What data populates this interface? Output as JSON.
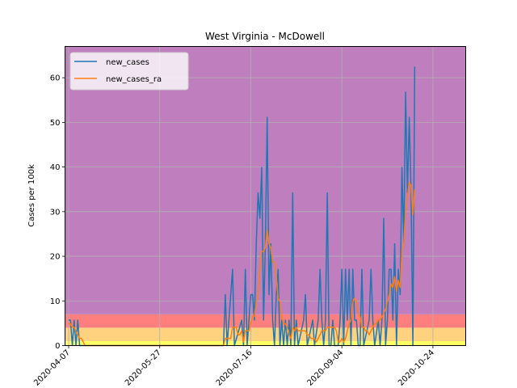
{
  "chart_data": {
    "type": "line",
    "title": "West Virginia - McDowell",
    "xlabel": "",
    "ylabel": "Cases per 100k",
    "x_start": "2020-04-05",
    "x_end": "2020-11-11",
    "xlim": [
      "2020-04-05",
      "2020-11-11"
    ],
    "ylim": [
      0,
      67
    ],
    "x_ticks": [
      "2020-04-07",
      "2020-05-27",
      "2020-07-16",
      "2020-09-04",
      "2020-10-24"
    ],
    "y_ticks": [
      0,
      10,
      20,
      30,
      40,
      50,
      60
    ],
    "grid": true,
    "legend": "top-left",
    "risk_bands": [
      {
        "from": 0,
        "to": 1,
        "color": "#ffff66"
      },
      {
        "from": 1,
        "to": 4,
        "color": "#ffd27f"
      },
      {
        "from": 4,
        "to": 7,
        "color": "#ff7f7f"
      },
      {
        "from": 7,
        "to": 67,
        "color": "#bf7fbf"
      }
    ],
    "series": [
      {
        "name": "new_cases",
        "color": "#1f77b4",
        "points": [
          [
            "2020-04-07",
            5.7
          ],
          [
            "2020-04-08",
            5.7
          ],
          [
            "2020-04-09",
            0
          ],
          [
            "2020-04-10",
            5.7
          ],
          [
            "2020-04-11",
            0
          ],
          [
            "2020-04-12",
            5.7
          ],
          [
            "2020-04-13",
            0
          ],
          [
            "2020-07-01",
            0
          ],
          [
            "2020-07-02",
            11.4
          ],
          [
            "2020-07-03",
            0
          ],
          [
            "2020-07-06",
            17.1
          ],
          [
            "2020-07-07",
            0
          ],
          [
            "2020-07-11",
            5.7
          ],
          [
            "2020-07-12",
            0
          ],
          [
            "2020-07-13",
            17.1
          ],
          [
            "2020-07-14",
            0
          ],
          [
            "2020-07-16",
            11.4
          ],
          [
            "2020-07-17",
            11.4
          ],
          [
            "2020-07-18",
            5.7
          ],
          [
            "2020-07-19",
            22.8
          ],
          [
            "2020-07-20",
            34.2
          ],
          [
            "2020-07-21",
            28.5
          ],
          [
            "2020-07-22",
            39.9
          ],
          [
            "2020-07-23",
            5.7
          ],
          [
            "2020-07-24",
            22.8
          ],
          [
            "2020-07-25",
            51.1
          ],
          [
            "2020-07-26",
            11.4
          ],
          [
            "2020-07-27",
            22.8
          ],
          [
            "2020-07-28",
            5.7
          ],
          [
            "2020-07-29",
            0
          ],
          [
            "2020-07-30",
            11.4
          ],
          [
            "2020-07-31",
            17.1
          ],
          [
            "2020-08-01",
            0
          ],
          [
            "2020-08-02",
            5.7
          ],
          [
            "2020-08-03",
            0
          ],
          [
            "2020-08-04",
            5.7
          ],
          [
            "2020-08-05",
            0
          ],
          [
            "2020-08-06",
            5.7
          ],
          [
            "2020-08-07",
            0
          ],
          [
            "2020-08-08",
            34.2
          ],
          [
            "2020-08-09",
            0
          ],
          [
            "2020-08-10",
            5.7
          ],
          [
            "2020-08-11",
            0
          ],
          [
            "2020-08-14",
            5.7
          ],
          [
            "2020-08-15",
            11.4
          ],
          [
            "2020-08-16",
            0
          ],
          [
            "2020-08-19",
            5.7
          ],
          [
            "2020-08-20",
            0
          ],
          [
            "2020-08-22",
            5.7
          ],
          [
            "2020-08-23",
            17.1
          ],
          [
            "2020-08-24",
            5.7
          ],
          [
            "2020-08-25",
            0
          ],
          [
            "2020-08-26",
            5.7
          ],
          [
            "2020-08-27",
            34.2
          ],
          [
            "2020-08-28",
            0
          ],
          [
            "2020-08-29",
            0
          ],
          [
            "2020-08-30",
            5.7
          ],
          [
            "2020-08-31",
            0
          ],
          [
            "2020-09-02",
            0
          ],
          [
            "2020-09-03",
            5.7
          ],
          [
            "2020-09-04",
            17.1
          ],
          [
            "2020-09-05",
            0
          ],
          [
            "2020-09-06",
            17.1
          ],
          [
            "2020-09-07",
            5.7
          ],
          [
            "2020-09-08",
            17.1
          ],
          [
            "2020-09-09",
            0
          ],
          [
            "2020-09-10",
            17.1
          ],
          [
            "2020-09-11",
            5.7
          ],
          [
            "2020-09-12",
            5.7
          ],
          [
            "2020-09-13",
            0
          ],
          [
            "2020-09-14",
            0
          ],
          [
            "2020-09-15",
            17.1
          ],
          [
            "2020-09-16",
            0
          ],
          [
            "2020-09-19",
            5.7
          ],
          [
            "2020-09-20",
            17.1
          ],
          [
            "2020-09-21",
            5.7
          ],
          [
            "2020-09-22",
            0
          ],
          [
            "2020-09-24",
            5.7
          ],
          [
            "2020-09-25",
            0
          ],
          [
            "2020-09-26",
            5.7
          ],
          [
            "2020-09-27",
            28.5
          ],
          [
            "2020-09-28",
            0
          ],
          [
            "2020-09-29",
            5.7
          ],
          [
            "2020-09-30",
            17.1
          ],
          [
            "2020-10-01",
            17.1
          ],
          [
            "2020-10-02",
            5.7
          ],
          [
            "2020-10-03",
            22.8
          ],
          [
            "2020-10-04",
            0
          ],
          [
            "2020-10-05",
            17.1
          ],
          [
            "2020-10-06",
            11.4
          ],
          [
            "2020-10-07",
            39.9
          ],
          [
            "2020-10-08",
            22.8
          ],
          [
            "2020-10-09",
            56.8
          ],
          [
            "2020-10-10",
            34.2
          ],
          [
            "2020-10-11",
            51.1
          ],
          [
            "2020-10-12",
            34.2
          ],
          [
            "2020-10-13",
            0
          ],
          [
            "2020-10-14",
            62.5
          ]
        ]
      },
      {
        "name": "new_cases_ra",
        "color": "#ff7f0e",
        "points": [
          [
            "2020-04-07",
            4.9
          ],
          [
            "2020-04-08",
            4.9
          ],
          [
            "2020-04-09",
            4.1
          ],
          [
            "2020-04-10",
            4.1
          ],
          [
            "2020-04-11",
            3.3
          ],
          [
            "2020-04-12",
            2.4
          ],
          [
            "2020-04-13",
            1.6
          ],
          [
            "2020-04-14",
            1.6
          ],
          [
            "2020-04-15",
            0.8
          ],
          [
            "2020-04-16",
            0
          ],
          [
            "2020-07-01",
            0
          ],
          [
            "2020-07-02",
            1.6
          ],
          [
            "2020-07-03",
            1.6
          ],
          [
            "2020-07-04",
            1.6
          ],
          [
            "2020-07-05",
            1.6
          ],
          [
            "2020-07-06",
            4.1
          ],
          [
            "2020-07-07",
            4.1
          ],
          [
            "2020-07-08",
            4.1
          ],
          [
            "2020-07-09",
            2.4
          ],
          [
            "2020-07-10",
            2.4
          ],
          [
            "2020-07-11",
            3.3
          ],
          [
            "2020-07-12",
            0.8
          ],
          [
            "2020-07-13",
            3.3
          ],
          [
            "2020-07-14",
            3.3
          ],
          [
            "2020-07-15",
            3.3
          ],
          [
            "2020-07-16",
            4.9
          ],
          [
            "2020-07-17",
            6.5
          ],
          [
            "2020-07-18",
            6.5
          ],
          [
            "2020-07-19",
            9.8
          ],
          [
            "2020-07-20",
            11.4
          ],
          [
            "2020-07-21",
            17.1
          ],
          [
            "2020-07-22",
            21.1
          ],
          [
            "2020-07-23",
            21.1
          ],
          [
            "2020-07-24",
            22.0
          ],
          [
            "2020-07-25",
            25.8
          ],
          [
            "2020-07-26",
            22.8
          ],
          [
            "2020-07-27",
            22.0
          ],
          [
            "2020-07-28",
            18.7
          ],
          [
            "2020-07-29",
            18.7
          ],
          [
            "2020-07-30",
            15.4
          ],
          [
            "2020-07-31",
            10.6
          ],
          [
            "2020-08-01",
            9.8
          ],
          [
            "2020-08-02",
            6.5
          ],
          [
            "2020-08-03",
            4.9
          ],
          [
            "2020-08-04",
            4.9
          ],
          [
            "2020-08-05",
            4.1
          ],
          [
            "2020-08-06",
            2.4
          ],
          [
            "2020-08-07",
            1.6
          ],
          [
            "2020-08-08",
            4.1
          ],
          [
            "2020-08-09",
            3.3
          ],
          [
            "2020-08-10",
            4.1
          ],
          [
            "2020-08-11",
            3.3
          ],
          [
            "2020-08-12",
            3.3
          ],
          [
            "2020-08-13",
            3.3
          ],
          [
            "2020-08-14",
            3.3
          ],
          [
            "2020-08-15",
            3.3
          ],
          [
            "2020-08-16",
            2.4
          ],
          [
            "2020-08-17",
            2.4
          ],
          [
            "2020-08-18",
            1.6
          ],
          [
            "2020-08-19",
            1.6
          ],
          [
            "2020-08-20",
            1.6
          ],
          [
            "2020-08-21",
            0.8
          ],
          [
            "2020-08-22",
            1.6
          ],
          [
            "2020-08-23",
            2.4
          ],
          [
            "2020-08-24",
            3.3
          ],
          [
            "2020-08-25",
            3.3
          ],
          [
            "2020-08-26",
            3.3
          ],
          [
            "2020-08-27",
            4.1
          ],
          [
            "2020-08-28",
            4.1
          ],
          [
            "2020-08-29",
            4.1
          ],
          [
            "2020-08-30",
            4.1
          ],
          [
            "2020-08-31",
            4.1
          ],
          [
            "2020-09-01",
            3.3
          ],
          [
            "2020-09-02",
            0.8
          ],
          [
            "2020-09-03",
            0.8
          ],
          [
            "2020-09-04",
            1.6
          ],
          [
            "2020-09-05",
            0.8
          ],
          [
            "2020-09-06",
            1.6
          ],
          [
            "2020-09-07",
            3.3
          ],
          [
            "2020-09-08",
            4.9
          ],
          [
            "2020-09-09",
            5.7
          ],
          [
            "2020-09-10",
            9.8
          ],
          [
            "2020-09-11",
            10.6
          ],
          [
            "2020-09-12",
            9.8
          ],
          [
            "2020-09-13",
            7.3
          ],
          [
            "2020-09-14",
            6.5
          ],
          [
            "2020-09-15",
            4.1
          ],
          [
            "2020-09-16",
            4.1
          ],
          [
            "2020-09-17",
            3.3
          ],
          [
            "2020-09-18",
            3.3
          ],
          [
            "2020-09-19",
            2.4
          ],
          [
            "2020-09-20",
            3.3
          ],
          [
            "2020-09-21",
            4.1
          ],
          [
            "2020-09-22",
            4.9
          ],
          [
            "2020-09-23",
            4.9
          ],
          [
            "2020-09-24",
            5.7
          ],
          [
            "2020-09-25",
            5.7
          ],
          [
            "2020-09-26",
            6.5
          ],
          [
            "2020-09-27",
            7.3
          ],
          [
            "2020-09-28",
            8.1
          ],
          [
            "2020-09-29",
            9.8
          ],
          [
            "2020-09-30",
            11.4
          ],
          [
            "2020-10-01",
            13.8
          ],
          [
            "2020-10-02",
            13.0
          ],
          [
            "2020-10-03",
            15.4
          ],
          [
            "2020-10-04",
            12.2
          ],
          [
            "2020-10-05",
            14.6
          ],
          [
            "2020-10-06",
            13.0
          ],
          [
            "2020-10-07",
            21.1
          ],
          [
            "2020-10-08",
            22.8
          ],
          [
            "2020-10-09",
            30.1
          ],
          [
            "2020-10-10",
            33.4
          ],
          [
            "2020-10-11",
            36.6
          ],
          [
            "2020-10-12",
            35.8
          ],
          [
            "2020-10-13",
            29.3
          ],
          [
            "2020-10-14",
            35.0
          ]
        ]
      }
    ]
  }
}
